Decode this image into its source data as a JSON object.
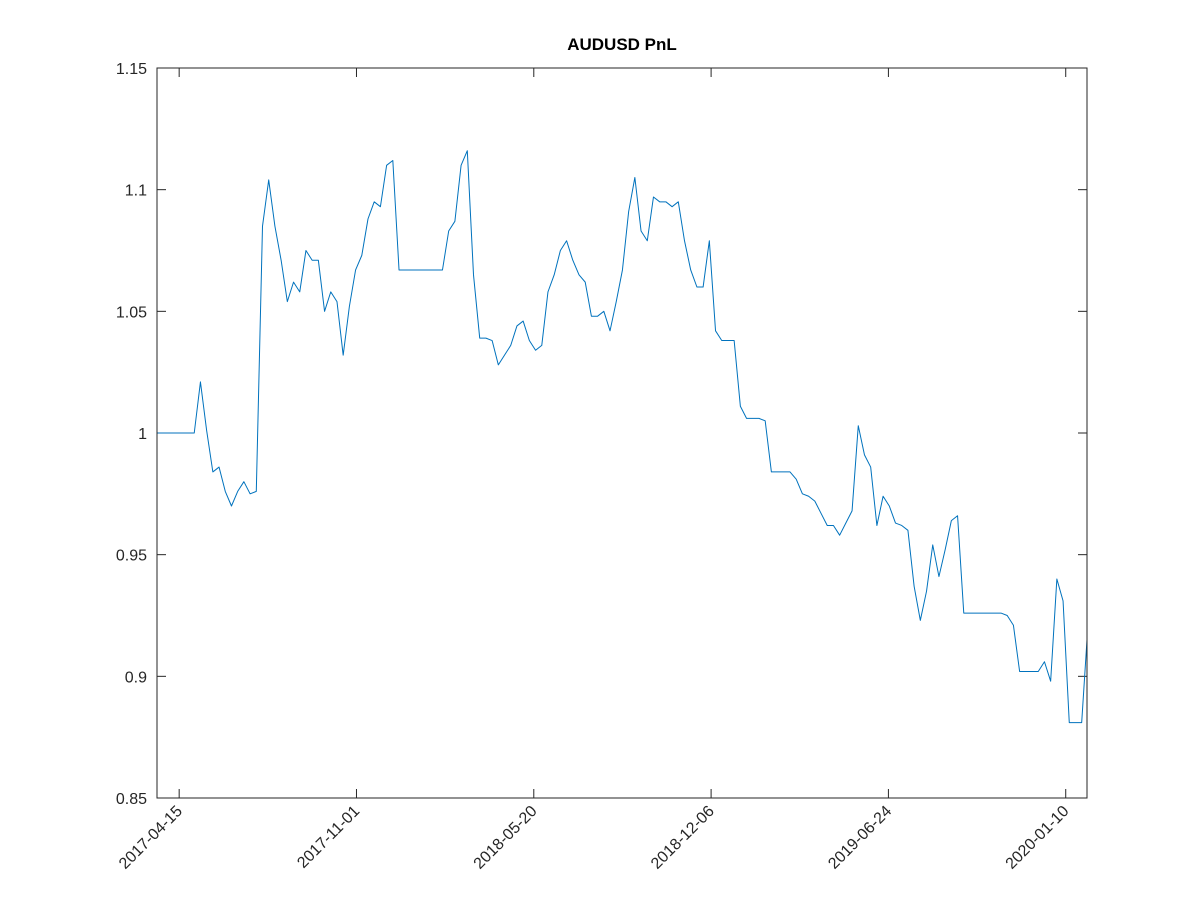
{
  "chart_data": {
    "type": "line",
    "title": "AUDUSD PnL",
    "color": "#0072bd",
    "grid": false,
    "xlim": [
      "2017-03-21",
      "2020-02-03"
    ],
    "xticks": [
      "2017-04-15",
      "2017-11-01",
      "2018-05-20",
      "2018-12-06",
      "2019-06-24",
      "2020-01-10"
    ],
    "ylim": [
      0.85,
      1.15
    ],
    "yticks": [
      0.85,
      0.9,
      0.95,
      1,
      1.05,
      1.1,
      1.15
    ],
    "x": [
      "2017-03-21",
      "2017-03-28",
      "2017-04-04",
      "2017-04-11",
      "2017-04-18",
      "2017-04-25",
      "2017-05-02",
      "2017-05-09",
      "2017-05-16",
      "2017-05-23",
      "2017-05-30",
      "2017-06-06",
      "2017-06-13",
      "2017-06-20",
      "2017-06-27",
      "2017-07-04",
      "2017-07-11",
      "2017-07-18",
      "2017-07-25",
      "2017-08-01",
      "2017-08-08",
      "2017-08-15",
      "2017-08-22",
      "2017-08-29",
      "2017-09-05",
      "2017-09-12",
      "2017-09-19",
      "2017-09-26",
      "2017-10-03",
      "2017-10-10",
      "2017-10-17",
      "2017-10-24",
      "2017-10-31",
      "2017-11-07",
      "2017-11-14",
      "2017-11-21",
      "2017-11-28",
      "2017-12-05",
      "2017-12-12",
      "2017-12-19",
      "2017-12-26",
      "2018-01-02",
      "2018-01-09",
      "2018-01-16",
      "2018-01-23",
      "2018-01-30",
      "2018-02-06",
      "2018-02-13",
      "2018-02-20",
      "2018-02-27",
      "2018-03-06",
      "2018-03-13",
      "2018-03-20",
      "2018-03-27",
      "2018-04-03",
      "2018-04-10",
      "2018-04-17",
      "2018-04-24",
      "2018-05-01",
      "2018-05-08",
      "2018-05-15",
      "2018-05-22",
      "2018-05-29",
      "2018-06-05",
      "2018-06-12",
      "2018-06-19",
      "2018-06-26",
      "2018-07-03",
      "2018-07-10",
      "2018-07-17",
      "2018-07-24",
      "2018-07-31",
      "2018-08-07",
      "2018-08-14",
      "2018-08-21",
      "2018-08-28",
      "2018-09-04",
      "2018-09-11",
      "2018-09-18",
      "2018-09-25",
      "2018-10-02",
      "2018-10-09",
      "2018-10-16",
      "2018-10-23",
      "2018-10-30",
      "2018-11-06",
      "2018-11-13",
      "2018-11-20",
      "2018-11-27",
      "2018-12-04",
      "2018-12-11",
      "2018-12-18",
      "2018-12-25",
      "2019-01-01",
      "2019-01-08",
      "2019-01-15",
      "2019-01-22",
      "2019-01-29",
      "2019-02-05",
      "2019-02-12",
      "2019-02-19",
      "2019-02-26",
      "2019-03-05",
      "2019-03-12",
      "2019-03-19",
      "2019-03-26",
      "2019-04-02",
      "2019-04-09",
      "2019-04-16",
      "2019-04-23",
      "2019-04-30",
      "2019-05-07",
      "2019-05-14",
      "2019-05-21",
      "2019-05-28",
      "2019-06-04",
      "2019-06-11",
      "2019-06-18",
      "2019-06-25",
      "2019-07-02",
      "2019-07-09",
      "2019-07-16",
      "2019-07-23",
      "2019-07-30",
      "2019-08-06",
      "2019-08-13",
      "2019-08-20",
      "2019-08-27",
      "2019-09-03",
      "2019-09-10",
      "2019-09-17",
      "2019-09-24",
      "2019-10-01",
      "2019-10-08",
      "2019-10-15",
      "2019-10-22",
      "2019-10-29",
      "2019-11-05",
      "2019-11-12",
      "2019-11-19",
      "2019-11-26",
      "2019-12-03",
      "2019-12-10",
      "2019-12-17",
      "2019-12-24",
      "2019-12-31",
      "2020-01-07",
      "2020-01-14",
      "2020-01-21",
      "2020-01-28",
      "2020-02-03"
    ],
    "values": [
      1.0,
      1.0,
      1.0,
      1.0,
      1.0,
      1.0,
      1.0,
      1.021,
      1.001,
      0.984,
      0.986,
      0.976,
      0.97,
      0.976,
      0.98,
      0.975,
      0.976,
      1.085,
      1.104,
      1.085,
      1.071,
      1.054,
      1.062,
      1.058,
      1.075,
      1.071,
      1.071,
      1.05,
      1.058,
      1.054,
      1.032,
      1.052,
      1.067,
      1.073,
      1.088,
      1.095,
      1.093,
      1.11,
      1.112,
      1.067,
      1.067,
      1.067,
      1.067,
      1.067,
      1.067,
      1.067,
      1.067,
      1.083,
      1.087,
      1.11,
      1.116,
      1.065,
      1.039,
      1.039,
      1.038,
      1.028,
      1.032,
      1.036,
      1.044,
      1.046,
      1.038,
      1.034,
      1.036,
      1.058,
      1.065,
      1.075,
      1.079,
      1.071,
      1.065,
      1.062,
      1.048,
      1.048,
      1.05,
      1.042,
      1.054,
      1.067,
      1.091,
      1.105,
      1.083,
      1.079,
      1.097,
      1.095,
      1.095,
      1.093,
      1.095,
      1.079,
      1.067,
      1.06,
      1.06,
      1.079,
      1.042,
      1.038,
      1.038,
      1.038,
      1.011,
      1.006,
      1.006,
      1.006,
      1.005,
      0.984,
      0.984,
      0.984,
      0.984,
      0.981,
      0.975,
      0.974,
      0.972,
      0.967,
      0.962,
      0.962,
      0.958,
      0.963,
      0.968,
      1.003,
      0.991,
      0.986,
      0.962,
      0.974,
      0.97,
      0.963,
      0.962,
      0.96,
      0.937,
      0.923,
      0.935,
      0.954,
      0.941,
      0.952,
      0.964,
      0.966,
      0.926,
      0.926,
      0.926,
      0.926,
      0.926,
      0.926,
      0.926,
      0.925,
      0.921,
      0.902,
      0.902,
      0.902,
      0.902,
      0.906,
      0.898,
      0.94,
      0.931,
      0.881,
      0.881,
      0.881,
      0.915
    ]
  }
}
